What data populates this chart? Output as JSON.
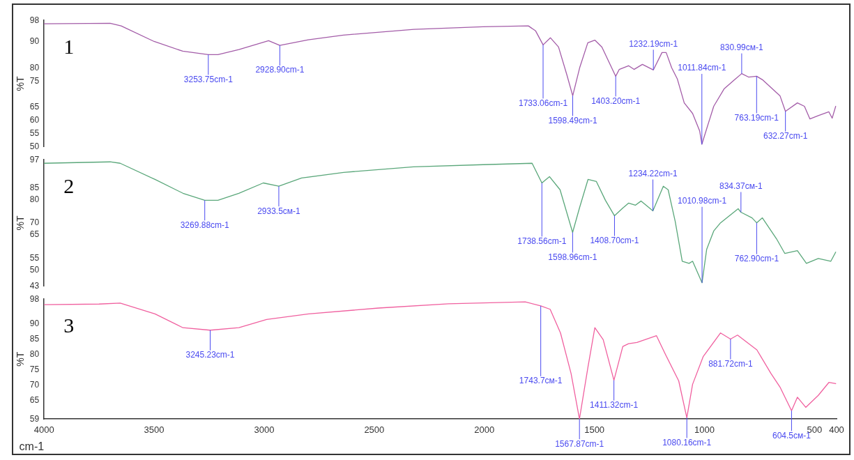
{
  "chart_data": [
    {
      "type": "line",
      "ylabel": "%T",
      "xlim": [
        4000,
        400
      ],
      "ylim": [
        50,
        98
      ],
      "yticks": [
        98,
        90,
        80,
        75,
        65,
        60,
        55,
        50
      ],
      "tick_labels": "y",
      "grid": false,
      "legend": false,
      "marker": "none",
      "color": "#a35ca8",
      "x": [
        4000,
        3700,
        3650,
        3500,
        3370,
        3253.75,
        3210,
        3115,
        2980,
        2928.9,
        2800,
        2640,
        2320,
        2005,
        1800,
        1767,
        1733.06,
        1700,
        1663,
        1625,
        1598.49,
        1567,
        1530,
        1498,
        1466,
        1403.2,
        1387,
        1345,
        1320,
        1282,
        1232.19,
        1193,
        1174,
        1149,
        1123,
        1092,
        1054,
        1022,
        1011.84,
        990,
        958,
        911,
        863,
        830.99,
        800,
        763.19,
        737,
        657,
        632.27,
        578,
        546,
        521,
        483,
        435,
        420,
        404
      ],
      "values": [
        96.7,
        96.9,
        95.9,
        90,
        86.3,
        85,
        85,
        86.9,
        90.3,
        88.5,
        90.6,
        92.4,
        94.6,
        95.6,
        95.9,
        94,
        88.7,
        91.4,
        87.9,
        77.3,
        69.4,
        80,
        89.5,
        90.5,
        87.9,
        76.8,
        79.4,
        80.8,
        79.4,
        81.3,
        79.2,
        85.8,
        85.8,
        80,
        75.7,
        66.7,
        62.7,
        56.1,
        51,
        56.9,
        65.4,
        72,
        75.5,
        77.8,
        76.5,
        76.8,
        75.5,
        69.4,
        63.5,
        66.7,
        65.4,
        60.6,
        61.9,
        63.3,
        60.9,
        65.4
      ],
      "annotations": [
        "1",
        {
          "text": "3253.75cm-1",
          "x": 3253.75,
          "y": 85
        },
        {
          "text": "2928.90cm-1",
          "x": 2928.9,
          "y": 88.5
        },
        {
          "text": "1733.06cm-1",
          "x": 1733.06,
          "y": 88.7
        },
        {
          "text": "1598.49cm-1",
          "x": 1598.49,
          "y": 69.4
        },
        {
          "text": "1403.20cm-1",
          "x": 1403.2,
          "y": 76.8
        },
        {
          "text": "1232.19cm-1",
          "x": 1232.19,
          "y": 79.2
        },
        {
          "text": "1011.84cm-1",
          "x": 1011.84,
          "y": 51
        },
        {
          "text": "830.99см-1",
          "x": 830.99,
          "y": 77.8
        },
        {
          "text": "763.19cm-1",
          "x": 763.19,
          "y": 76.8
        },
        {
          "text": "632.27cm-1",
          "x": 632.27,
          "y": 63.5
        }
      ]
    },
    {
      "type": "line",
      "ylabel": "%T",
      "xlim": [
        4000,
        400
      ],
      "ylim": [
        43,
        97
      ],
      "yticks": [
        97,
        85,
        80,
        70,
        65,
        55,
        50,
        43
      ],
      "tick_labels": "y",
      "grid": false,
      "legend": false,
      "marker": "none",
      "color": "#5aa77a",
      "x": [
        4000,
        3700,
        3654,
        3496,
        3369,
        3269.88,
        3210,
        3115,
        3004,
        2933.5,
        2830,
        2639,
        2322,
        2005,
        1783,
        1738.56,
        1704,
        1656,
        1598.96,
        1567,
        1529,
        1491,
        1450,
        1408.7,
        1371,
        1345,
        1314,
        1288,
        1234.22,
        1187,
        1165,
        1133,
        1101,
        1070,
        1054,
        1010.98,
        990,
        958,
        927,
        847,
        834.37,
        784,
        762.9,
        737,
        673,
        635,
        578,
        537,
        483,
        426,
        404
      ],
      "values": [
        95.5,
        96.1,
        95.5,
        88.6,
        82.7,
        79.7,
        79.7,
        82.7,
        87.1,
        85.7,
        89.2,
        91.6,
        94,
        94.9,
        95.5,
        87.1,
        89.8,
        84.2,
        66,
        76.7,
        88.6,
        87.7,
        79.7,
        73.1,
        76.4,
        78.5,
        77.6,
        79.4,
        75.2,
        85.7,
        84.2,
        70.7,
        53.7,
        52.8,
        53.7,
        44.5,
        58.8,
        66.6,
        70.1,
        76.1,
        74.6,
        72.2,
        70.1,
        72.2,
        63.3,
        57,
        58.2,
        52.8,
        54.9,
        53.7,
        57.6
      ],
      "annotations": [
        "2",
        {
          "text": "3269.88cm-1",
          "x": 3269.88,
          "y": 79.7
        },
        {
          "text": "2933.5см-1",
          "x": 2933.5,
          "y": 85.7
        },
        {
          "text": "1738.56cm-1",
          "x": 1738.56,
          "y": 87.1
        },
        {
          "text": "1598.96cm-1",
          "x": 1598.96,
          "y": 66
        },
        {
          "text": "1408.70cm-1",
          "x": 1408.7,
          "y": 73.1
        },
        {
          "text": "1234.22cm-1",
          "x": 1234.22,
          "y": 75.2
        },
        {
          "text": "1010.98cm-1",
          "x": 1010.98,
          "y": 44.5
        },
        {
          "text": "834.37см-1",
          "x": 834.37,
          "y": 74.6
        },
        {
          "text": "762.90cm-1",
          "x": 762.9,
          "y": 70.1
        }
      ]
    },
    {
      "type": "line",
      "ylabel": "%T",
      "xlabel": "cm-1",
      "xlim": [
        4000,
        400
      ],
      "xticks": [
        4000,
        3500,
        3000,
        2500,
        2000,
        1500,
        1000,
        500,
        400
      ],
      "ylim": [
        59,
        98
      ],
      "yticks": [
        98,
        90,
        85,
        80,
        75,
        70,
        65,
        59
      ],
      "grid": false,
      "legend": false,
      "marker": "none",
      "color": "#f0609f",
      "x": [
        4000,
        3750,
        3654,
        3496,
        3369,
        3245.23,
        3115,
        2989,
        2798,
        2481,
        2163,
        1814,
        1743.7,
        1701,
        1654,
        1606,
        1567.87,
        1529,
        1498,
        1460,
        1411.32,
        1371,
        1345,
        1307,
        1218,
        1180,
        1117,
        1080.16,
        1054,
        1006,
        927,
        881.72,
        850,
        762,
        698,
        657,
        604.5,
        578,
        540,
        483,
        435,
        404
      ],
      "values": [
        96.2,
        96.4,
        96.7,
        93.2,
        88.7,
        87.9,
        88.7,
        91.4,
        93.2,
        95.1,
        96.5,
        97.1,
        95.8,
        94.7,
        87,
        73.8,
        59,
        76,
        88.7,
        84.8,
        71.6,
        82.6,
        83.5,
        83.9,
        86.1,
        80.4,
        71.4,
        59.4,
        70.3,
        79.3,
        87,
        85,
        86.3,
        81.5,
        73.8,
        69.4,
        61.7,
        66.1,
        62.8,
        66.7,
        70.9,
        70.5
      ],
      "annotations": [
        "3",
        {
          "text": "3245.23cm-1",
          "x": 3245.23,
          "y": 87.9
        },
        {
          "text": "1743.7см-1",
          "x": 1743.7,
          "y": 95.8
        },
        {
          "text": "1567.87cm-1",
          "x": 1567.87,
          "y": 59
        },
        {
          "text": "1411.32cm-1",
          "x": 1411.32,
          "y": 71.6
        },
        {
          "text": "1080.16cm-1",
          "x": 1080.16,
          "y": 59.4
        },
        {
          "text": "881.72cm-1",
          "x": 881.72,
          "y": 85
        },
        {
          "text": "604.5см-1",
          "x": 604.5,
          "y": 61.7
        }
      ]
    }
  ]
}
